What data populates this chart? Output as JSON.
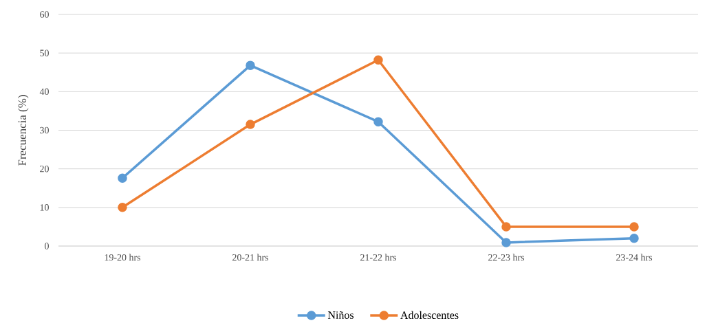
{
  "chart_data": {
    "type": "line",
    "ylabel": "Frecuencia (%)",
    "categories": [
      "19-20 hrs",
      "20-21 hrs",
      "21-22 hrs",
      "22-23 hrs",
      "23-24 hrs"
    ],
    "series": [
      {
        "name": "Niños",
        "color": "#5b9bd5",
        "values": [
          17.6,
          46.8,
          32.2,
          0.9,
          2.0
        ]
      },
      {
        "name": "Adolescentes",
        "color": "#ed7d31",
        "values": [
          10.0,
          31.5,
          48.2,
          5.0,
          5.0
        ]
      }
    ],
    "ylim": [
      0,
      60
    ],
    "yticks": [
      0,
      10,
      20,
      30,
      40,
      50,
      60
    ],
    "grid": "y",
    "legend": "bottom",
    "marker": "circle",
    "line_style": "solid"
  }
}
